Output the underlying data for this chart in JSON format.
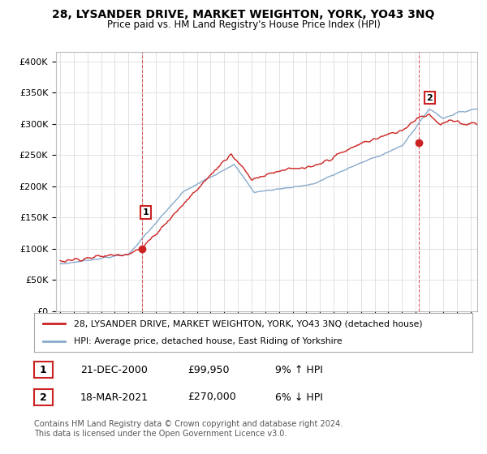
{
  "title": "28, LYSANDER DRIVE, MARKET WEIGHTON, YORK, YO43 3NQ",
  "subtitle": "Price paid vs. HM Land Registry's House Price Index (HPI)",
  "ylabel_ticks": [
    "£0",
    "£50K",
    "£100K",
    "£150K",
    "£200K",
    "£250K",
    "£300K",
    "£350K",
    "£400K"
  ],
  "ytick_values": [
    0,
    50000,
    100000,
    150000,
    200000,
    250000,
    300000,
    350000,
    400000
  ],
  "ylim": [
    0,
    415000
  ],
  "xlim_start": 1994.7,
  "xlim_end": 2025.5,
  "sale1_x": 2000.97,
  "sale1_y": 99950,
  "sale2_x": 2021.22,
  "sale2_y": 270000,
  "legend_line1": "28, LYSANDER DRIVE, MARKET WEIGHTON, YORK, YO43 3NQ (detached house)",
  "legend_line2": "HPI: Average price, detached house, East Riding of Yorkshire",
  "ann1_date": "21-DEC-2000",
  "ann1_price": "£99,950",
  "ann1_hpi": "9% ↑ HPI",
  "ann2_date": "18-MAR-2021",
  "ann2_price": "£270,000",
  "ann2_hpi": "6% ↓ HPI",
  "footer": "Contains HM Land Registry data © Crown copyright and database right 2024.\nThis data is licensed under the Open Government Licence v3.0.",
  "color_red": "#cc2222",
  "color_blue": "#88aacc",
  "color_grid": "#dddddd",
  "color_vline": "#cc2222",
  "bg": "#ffffff"
}
